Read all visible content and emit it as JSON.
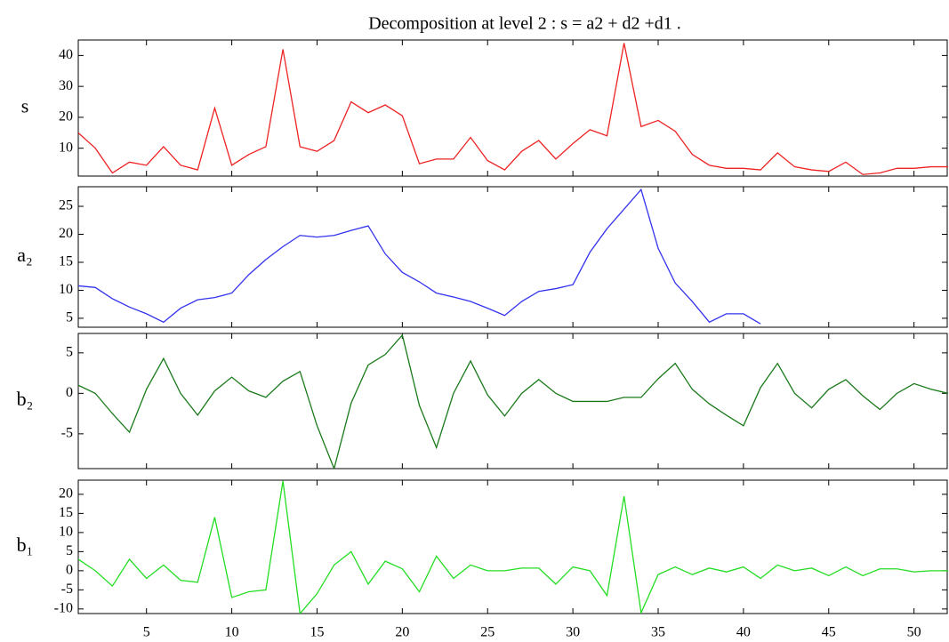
{
  "chart_data": [
    {
      "type": "line",
      "title": "Decomposition at level 2 : s = a2 + d2 +d1 .",
      "ylabel": "s",
      "x": [
        1,
        2,
        3,
        4,
        5,
        6,
        7,
        8,
        9,
        10,
        11,
        12,
        13,
        14,
        15,
        16,
        17,
        18,
        19,
        20,
        21,
        22,
        23,
        24,
        25,
        26,
        27,
        28,
        29,
        30,
        31,
        32,
        33,
        34,
        35,
        36,
        37,
        38,
        39,
        40,
        41,
        42,
        43,
        44,
        45,
        46,
        47,
        48,
        49,
        50,
        51,
        52
      ],
      "xlim": [
        1,
        52
      ],
      "ylim": [
        1,
        45
      ],
      "yticks": [
        10,
        20,
        30,
        40
      ],
      "series": [
        {
          "name": "s",
          "color": "#ee2222",
          "values": [
            15,
            10,
            2,
            5.5,
            4.5,
            10.5,
            4.5,
            3,
            23,
            4.5,
            8,
            10.5,
            42,
            10.5,
            9,
            12.5,
            25,
            21.5,
            24,
            20.5,
            5,
            6.5,
            6.5,
            13.5,
            6,
            3,
            9,
            12.5,
            6.5,
            11.5,
            16,
            14,
            44,
            17,
            19,
            15.5,
            8,
            4.5,
            3.5,
            3.5,
            3,
            8.5,
            4,
            3,
            2.5,
            5.5,
            1.5,
            2,
            3.5,
            3.5,
            4,
            4
          ]
        }
      ]
    },
    {
      "type": "line",
      "ylabel": "a₂",
      "x": [
        1,
        2,
        3,
        4,
        5,
        6,
        7,
        8,
        9,
        10,
        11,
        12,
        13,
        14,
        15,
        16,
        17,
        18,
        19,
        20,
        21,
        22,
        23,
        24,
        25,
        26,
        27,
        28,
        29,
        30,
        31,
        32,
        33,
        34,
        35,
        36,
        37,
        38,
        39,
        40,
        41,
        42,
        43,
        44,
        45,
        46,
        47,
        48,
        49,
        50,
        51,
        52
      ],
      "xlim": [
        1,
        52
      ],
      "ylim": [
        3.4,
        28.5
      ],
      "yticks": [
        5,
        10,
        15,
        20,
        25
      ],
      "series": [
        {
          "name": "a₂",
          "color": "#3333ee",
          "values": [
            10.8,
            10.5,
            8.5,
            7,
            5.8,
            4.3,
            6.8,
            8.3,
            8.7,
            9.5,
            12.8,
            15.5,
            17.8,
            19.8,
            19.5,
            19.8,
            20.7,
            21.5,
            16.5,
            13.2,
            11.5,
            9.5,
            8.8,
            8,
            6.8,
            5.5,
            8,
            9.8,
            10.3,
            11,
            16.8,
            21,
            24.5,
            28,
            17.5,
            11.3,
            8,
            4.3,
            5.8,
            5.8,
            4,
            null,
            null,
            null,
            null,
            null,
            null,
            null,
            null,
            null,
            null,
            null
          ]
        }
      ]
    },
    {
      "type": "line",
      "ylabel": "b₂",
      "x": [
        1,
        2,
        3,
        4,
        5,
        6,
        7,
        8,
        9,
        10,
        11,
        12,
        13,
        14,
        15,
        16,
        17,
        18,
        19,
        20,
        21,
        22,
        23,
        24,
        25,
        26,
        27,
        28,
        29,
        30,
        31,
        32,
        33,
        34,
        35,
        36,
        37,
        38,
        39,
        40,
        41,
        42,
        43,
        44,
        45,
        46,
        47,
        48,
        49,
        50,
        51,
        52
      ],
      "xlim": [
        1,
        52
      ],
      "ylim": [
        -9.3,
        7.4
      ],
      "yticks": [
        -5,
        0,
        5
      ],
      "series": [
        {
          "name": "b₂",
          "color": "#1a7a1a",
          "values": [
            1,
            0,
            -2.5,
            -4.8,
            0.5,
            4.3,
            0,
            -2.7,
            0.3,
            2,
            0.3,
            -0.5,
            1.5,
            2.7,
            -4,
            -9.3,
            -1.2,
            3.5,
            4.8,
            7.2,
            -1.5,
            -6.7,
            0,
            4,
            -0.2,
            -2.8,
            0,
            1.7,
            0,
            -1,
            -1,
            -1,
            -0.5,
            -0.5,
            1.8,
            3.7,
            0.5,
            -1.3,
            -2.7,
            -4,
            0.7,
            3.7,
            0,
            -1.8,
            0.5,
            1.7,
            -0.3,
            -2,
            0,
            1.2,
            0.5,
            0
          ]
        }
      ]
    },
    {
      "type": "line",
      "ylabel": "b₁",
      "x": [
        1,
        2,
        3,
        4,
        5,
        6,
        7,
        8,
        9,
        10,
        11,
        12,
        13,
        14,
        15,
        16,
        17,
        18,
        19,
        20,
        21,
        22,
        23,
        24,
        25,
        26,
        27,
        28,
        29,
        30,
        31,
        32,
        33,
        34,
        35,
        36,
        37,
        38,
        39,
        40,
        41,
        42,
        43,
        44,
        45,
        46,
        47,
        48,
        49,
        50,
        51,
        52
      ],
      "xlim": [
        1,
        52
      ],
      "ylim": [
        -11.2,
        23.7
      ],
      "yticks": [
        -10,
        -5,
        0,
        5,
        10,
        15,
        20
      ],
      "xticks": [
        5,
        10,
        15,
        20,
        25,
        30,
        35,
        40,
        45,
        50
      ],
      "series": [
        {
          "name": "b₁",
          "color": "#22dd22",
          "values": [
            3,
            0,
            -4,
            3,
            -2,
            1.5,
            -2.5,
            -3,
            14,
            -7,
            -5.5,
            -5,
            23.5,
            -11.2,
            -6,
            1.5,
            5,
            -3.5,
            2.5,
            0.5,
            -5.5,
            3.8,
            -2,
            1.5,
            0,
            0,
            0.7,
            0.7,
            -3.5,
            1,
            0,
            -6.5,
            19.5,
            -11,
            -1,
            1,
            -1,
            0.7,
            -0.3,
            1,
            -2,
            1.5,
            0,
            0.7,
            -1.3,
            1,
            -1.3,
            0.5,
            0.5,
            -0.3,
            0,
            0
          ]
        }
      ]
    }
  ]
}
